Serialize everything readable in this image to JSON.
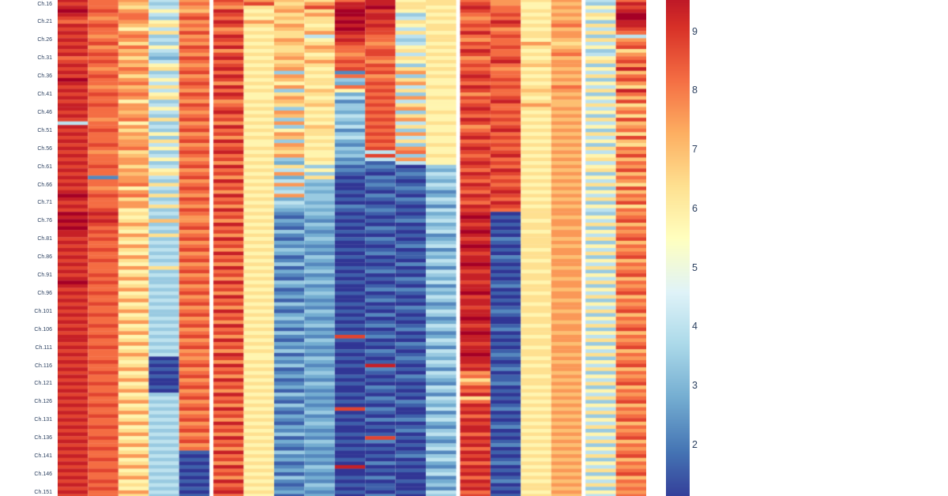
{
  "figure": {
    "background_color": "#ffffff",
    "tick_label_color": "#2a3f5f"
  },
  "chart_data": {
    "type": "heatmap",
    "title": "",
    "xlabel": "",
    "ylabel": "",
    "legend_position": "right-colorbar",
    "grid": false,
    "y_axis": {
      "tick_prefix": "Ch.",
      "tick_labels": [
        "Ch.16",
        "Ch.21",
        "Ch.26",
        "Ch.31",
        "Ch.36",
        "Ch.41",
        "Ch.46",
        "Ch.51",
        "Ch.56",
        "Ch.61",
        "Ch.66",
        "Ch.71",
        "Ch.76",
        "Ch.81",
        "Ch.86",
        "Ch.91",
        "Ch.96",
        "Ch.101",
        "Ch.106",
        "Ch.111",
        "Ch.116",
        "Ch.121",
        "Ch.126",
        "Ch.131",
        "Ch.136",
        "Ch.141",
        "Ch.146",
        "Ch.151"
      ],
      "tick_channels": [
        16,
        21,
        26,
        31,
        36,
        41,
        46,
        51,
        56,
        61,
        66,
        71,
        76,
        81,
        86,
        91,
        96,
        101,
        106,
        111,
        116,
        121,
        126,
        131,
        136,
        141,
        146,
        151
      ],
      "first_visible_channel": 15
    },
    "x_axis": {
      "tick_labels": [],
      "note_visible_columns": 19,
      "column_groups": [
        5,
        8,
        4,
        2
      ]
    },
    "colorbar": {
      "tick_labels": [
        "9",
        "8",
        "7",
        "6",
        "5",
        "4",
        "3",
        "2"
      ],
      "tick_values": [
        9,
        8,
        7,
        6,
        5,
        4,
        3,
        2
      ],
      "top_visible_value": 9.53,
      "bottom_visible_value": 1.13
    },
    "colorscale_name": "RdYlBu-reversed",
    "colorscale": [
      [
        1.0,
        "#313695"
      ],
      [
        1.9,
        "#4575b4"
      ],
      [
        2.8,
        "#74add1"
      ],
      [
        3.7,
        "#abd9e9"
      ],
      [
        4.6,
        "#e0f3f8"
      ],
      [
        5.5,
        "#ffffbf"
      ],
      [
        6.4,
        "#fee090"
      ],
      [
        7.3,
        "#fdae61"
      ],
      [
        8.2,
        "#f46d43"
      ],
      [
        9.1,
        "#d73027"
      ],
      [
        10.0,
        "#a50026"
      ]
    ],
    "zmin": 1,
    "zmax": 10,
    "z_encoding": {
      "chars": "0123456789abcdef",
      "min_value": 1,
      "max_value": 10,
      "note": "each row string = 19 columns top-to-bottom starting at channel 15; char maps linearly 0->1.0 ... f->10.0"
    },
    "z_rows": [
      "ecb5bdba9ce89cb9b5c",
      "dca4ccd9bee99db8a4e",
      "ec95bb9adef98ec8b8d",
      "fdb8ae8b9fd89dc9a5e",
      "ecc5cd99bfe48cd8b9f",
      "dbc4dc8a9ee59bc9a8f",
      "ccb8beb99fd98ce8b4e",
      "eda9cd9b8ee89dd9c9e",
      "dc85bb8a9fd59cb8a5d",
      "ecb9dc99bed98ec9b9c",
      "dbc4be895dc59cd9b45",
      "ecb5cd9b8ec49bc8a9b",
      "dd94bc8a9db58dcb95c",
      "ebc8de99bcc89cd9a8d",
      "dca5cb89acd98ec8b49",
      "edb4bd9a8bd59dc9c5b",
      "cc93de8b9cc98bd8a8c",
      "ddb5cc99bdb89ce9b9d",
      "eca8bd8a9cd48dcab4b",
      "dbc9ce9b8dc99cb8a8e",
      "ecb4dc8492db8dc9b5a",
      "dd95be9b8cb49ec8a9c",
      "fcb8cd8a94c98dd9b4d",
      "ecc5db9893db8cc8a8b",
      "dba9ce8b8cc59ed9c59",
      "ecb5bc94a8d98dcab9e",
      "ddc8de8993c48bc9a4c",
      "ecb9cd8b85db9dd8b8a",
      "dc84bb9a92c58ce9a5d",
      "edb5dc89a4d98dcba99",
      "ecb8cd9484cb8ec9b5b",
      "dca5be8b93d49dd8a8c",
      "ecb4cc9a85c98cc9b49",
      "dbc9dd8494db8ed8a9d",
      "5c84bb9b83c59dc9b5a",
      "ecb5ce84a5d98bd8a8b",
      "dd94dc9892c48ce9b4c",
      "ecb8bd8b94db9dc8a99",
      "dca4cb9a85c58ed9b5d",
      "ecb9de8493d98cc8a8a",
      "ddb5bc8b82c49dd9b49",
      "ecc8cd9a94db8ec8a9c",
      "db94de89835c8dd9b5b",
      "eca5cc9b84d49ce8a8d",
      "dcb8bd84925b8dc9b9a",
      "ecb4cb9383158ed8a5c",
      "dd95de8941204dc9b8b",
      "ecb8bc9582113ce8a9d",
      "dca9cd8b41025ed9b4a",
      "e2b5db9390214dc8a8c",
      "dcb4be8541103cd9b5b",
      "ecc9cc9b30215ec8a99",
      "db85dd8440124dd9b4d",
      "ecb4cb9531012ce8a8a",
      "fdc9be8b40203ed9b5c",
      "ec94dc9341125dc8a9b",
      "dcb5cd8530014ce9b4d",
      "ecb9bb9442102ed8a89",
      "dd84de8331215dc9b5c",
      "fe95cc9240103e09b4b",
      "ed84bd8131014f19a8c",
      "fe9abb9320125e08b5d",
      "edb4ce8241003d19b9a",
      "fc95dc9130214e09a4c",
      "ed84bd8421105f18b8b",
      "ecb9cb9230012e09b5c",
      "dd94de8141203d29a9d",
      "ec85bc9330114e19b4a",
      "dcb4cd8220025f09a8c",
      "ed95db9431102e18b5b",
      "dc84be8320214d09b9c",
      "ecb5cc9141013e29a4d",
      "dd94dd8230105e18b8a",
      "ec85bb9420024f09b5c",
      "dcb9ce8131102e19a9b",
      "ec84dc9340215d08b4c",
      "dd95bd8221004e19b8d",
      "ecb4cb9130123e09a5a",
      "fd84de8441015d18b9c",
      "ec95bc9320102e29b4b",
      "dcb4cd8130224e09a8c",
      "ed85db9241013f18b5d",
      "dc94be8330105d09b9a",
      "ecb5cc9120214e19a4c",
      "dd84dd8431002e08b8b",
      "ec95bb9220123d19b5c",
      "dcb4ce8141015e29a9d",
      "ed84dc9330204e18b4a",
      "dc95bd8421012f09b8c",
      "ecb4cb9230103e09a5b",
      "dd85de8341215d18b9c",
      "ec94bc9120024e29b4d",
      "dcb5cd8431102f09a8a",
      "ed84db922d213e18b5c",
      "ec95be8141005e09b9b",
      "dcb4cc9330124d19a4c",
      "ed85dd8220012e08b8d",
      "dc94bb9431205e19b5a",
      "ecb5ce8120114f29a9c",
      "dc90bd8341023e18b4b",
      "ed81cb9230115e09a8c",
      "dc90de8421e04d18b5d",
      "ecb1bc9130212e29b9a",
      "dd80cd8240105b09a4c",
      "ec91db9331024c18b8b",
      "dcb0be8120113919a5c",
      "ed80cc9241002b29b9d",
      "dc91dd8330215d08a4a",
      "ecb0bb9120104c19b8c",
      "dd84ce8431012e08a5b",
      "ec95dc9220205919b9c",
      "dcb4bd8131124c08a4d",
      "ed85cb9420013e19b8a",
      "dc94de823d205d28a5c",
      "ecb5bc9140102e09b9b",
      "dd84cd8321014c18a4c",
      "ec95db9230225e09b8d",
      "dcb4be8141003d18a5a",
      "ed85cc9330112e29b9c",
      "dc94dd8220024e08a4b",
      "ecb5bb9431105c19b8c",
      "dd84ce8120d13e08a5d",
      "ec95dc9341202d19b9a",
      "dcb4bd8230014e28a4c",
      "ed85cb9121105c09b8b",
      "dc941e8430012e18a5c",
      "ecb50c9220124d09b9d",
      "dd841d8331005e18a4a",
      "ec950b9120213c29b8c",
      "dcb41e824e002e08a5b",
      "ed850c9330114d19b9c",
      "dc941d8120005e08a4d",
      "ecb50b9431202c19b8a",
      "dd841e8220013e28a5c",
      "ec950c9141104d09b9b",
      "dd841d8230102e19a4c",
      "ecb50e9321015c08b8b",
      "dc941c8130204d19a5c"
    ]
  }
}
